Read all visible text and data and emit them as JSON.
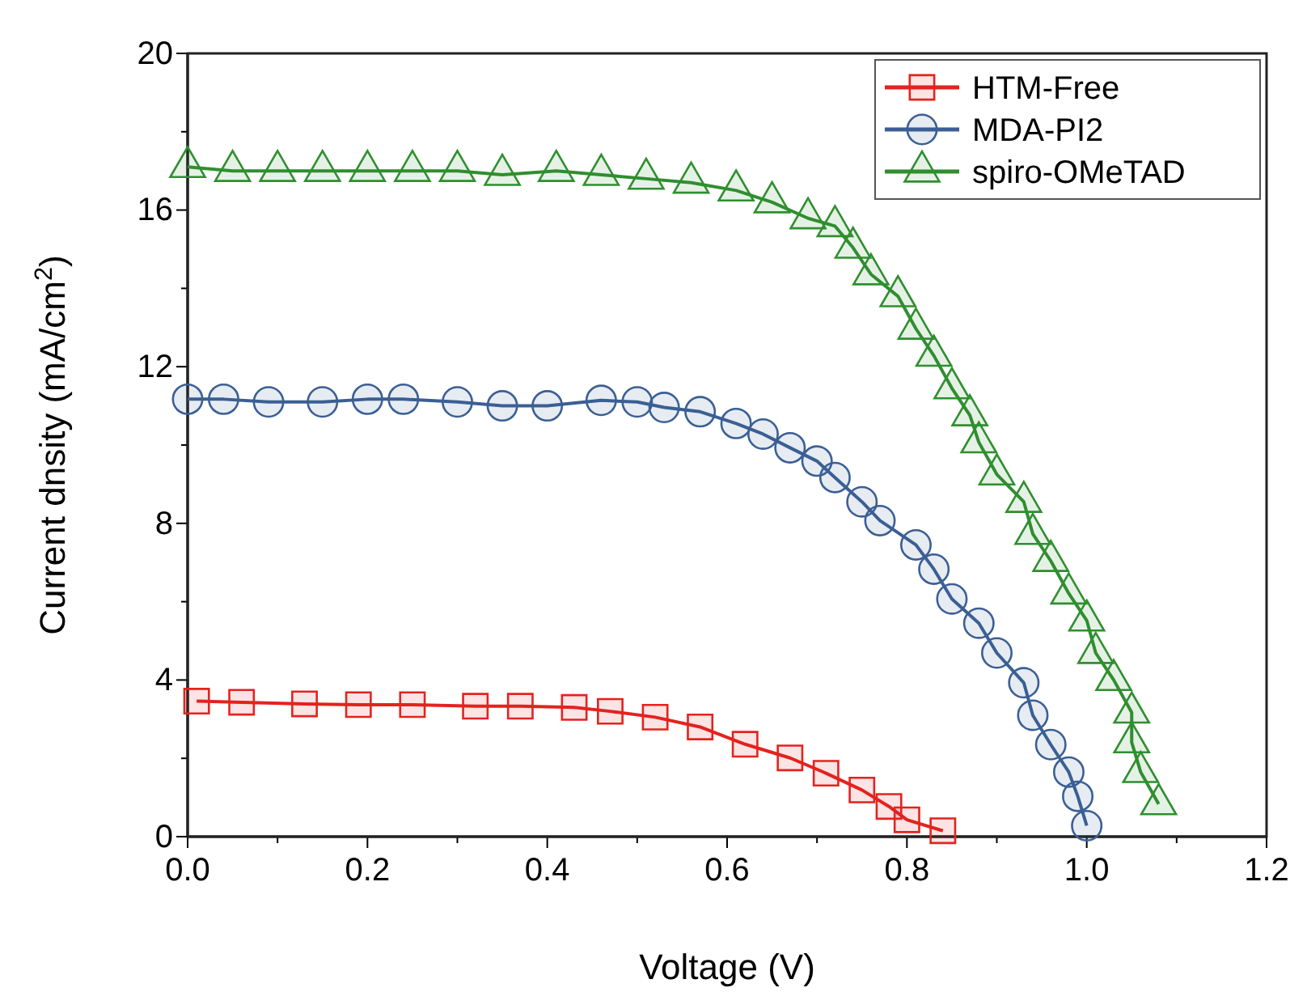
{
  "chart_data": {
    "type": "line",
    "xlabel": "Voltage (V)",
    "ylabel": "Current dnsity (mA/cm$^{2}$)",
    "xlim": [
      0,
      1.2
    ],
    "ylim": [
      0,
      20
    ],
    "xticks": [
      {
        "value": 0,
        "label": "0.0"
      },
      {
        "value": 0.1,
        "label": null
      },
      {
        "value": 0.2,
        "label": "0.2"
      },
      {
        "value": 0.3,
        "label": null
      },
      {
        "value": 0.4,
        "label": "0.4"
      },
      {
        "value": 0.5,
        "label": null
      },
      {
        "value": 0.6,
        "label": "0.6"
      },
      {
        "value": 0.7,
        "label": null
      },
      {
        "value": 0.8,
        "label": "0.8"
      },
      {
        "value": 0.9,
        "label": null
      },
      {
        "value": 1.0,
        "label": "1.0"
      },
      {
        "value": 1.1,
        "label": null
      },
      {
        "value": 1.2,
        "label": "1.2"
      }
    ],
    "yticks": [
      0,
      {
        "value": 2,
        "label": null
      },
      4,
      {
        "value": 6,
        "label": null
      },
      8,
      {
        "value": 10,
        "label": null
      },
      12,
      {
        "value": 14,
        "label": null
      },
      16,
      {
        "value": 18,
        "label": null
      },
      20
    ],
    "legend": "top right",
    "grid": false,
    "line_style": "solid",
    "series": [
      {
        "name": "HTM-Free",
        "color": "#e3231f",
        "marker": "square",
        "x": [
          0.01,
          0.06,
          0.13,
          0.19,
          0.25,
          0.32,
          0.37,
          0.43,
          0.47,
          0.52,
          0.57,
          0.62,
          0.67,
          0.71,
          0.75,
          0.78,
          0.8,
          0.84
        ],
        "values": [
          3.46,
          3.43,
          3.39,
          3.37,
          3.37,
          3.33,
          3.33,
          3.3,
          3.2,
          3.05,
          2.8,
          2.36,
          2.01,
          1.62,
          1.19,
          0.77,
          0.43,
          0.15
        ]
      },
      {
        "name": "MDA-PI2",
        "color": "#3b5f95",
        "marker": "circle",
        "x": [
          0.0,
          0.04,
          0.09,
          0.15,
          0.2,
          0.24,
          0.3,
          0.35,
          0.4,
          0.46,
          0.5,
          0.53,
          0.57,
          0.61,
          0.64,
          0.67,
          0.7,
          0.72,
          0.75,
          0.77,
          0.81,
          0.83,
          0.85,
          0.88,
          0.9,
          0.93,
          0.94,
          0.96,
          0.98,
          0.99,
          1.0
        ],
        "values": [
          11.17,
          11.17,
          11.1,
          11.1,
          11.17,
          11.17,
          11.1,
          11.0,
          11.0,
          11.14,
          11.1,
          10.96,
          10.85,
          10.55,
          10.28,
          9.93,
          9.59,
          9.17,
          8.55,
          8.07,
          7.45,
          6.83,
          6.07,
          5.45,
          4.69,
          3.93,
          3.1,
          2.35,
          1.65,
          1.03,
          0.28
        ]
      },
      {
        "name": "spiro-OMeTAD",
        "color": "#2f8f2f",
        "marker": "triangle",
        "x": [
          0.0,
          0.05,
          0.1,
          0.15,
          0.2,
          0.25,
          0.3,
          0.35,
          0.41,
          0.46,
          0.51,
          0.56,
          0.61,
          0.65,
          0.69,
          0.72,
          0.74,
          0.76,
          0.79,
          0.81,
          0.83,
          0.85,
          0.87,
          0.88,
          0.9,
          0.93,
          0.94,
          0.96,
          0.98,
          1.0,
          1.01,
          1.03,
          1.05,
          1.05,
          1.06,
          1.08
        ],
        "values": [
          17.1,
          17.0,
          17.0,
          17.0,
          17.0,
          17.0,
          17.0,
          16.9,
          17.0,
          16.9,
          16.8,
          16.7,
          16.5,
          16.2,
          15.79,
          15.59,
          15.04,
          14.36,
          13.8,
          12.97,
          12.28,
          11.45,
          10.76,
          10.07,
          9.25,
          8.55,
          7.73,
          7.04,
          6.21,
          5.52,
          4.69,
          4.0,
          3.17,
          2.41,
          1.65,
          0.83
        ]
      }
    ]
  }
}
